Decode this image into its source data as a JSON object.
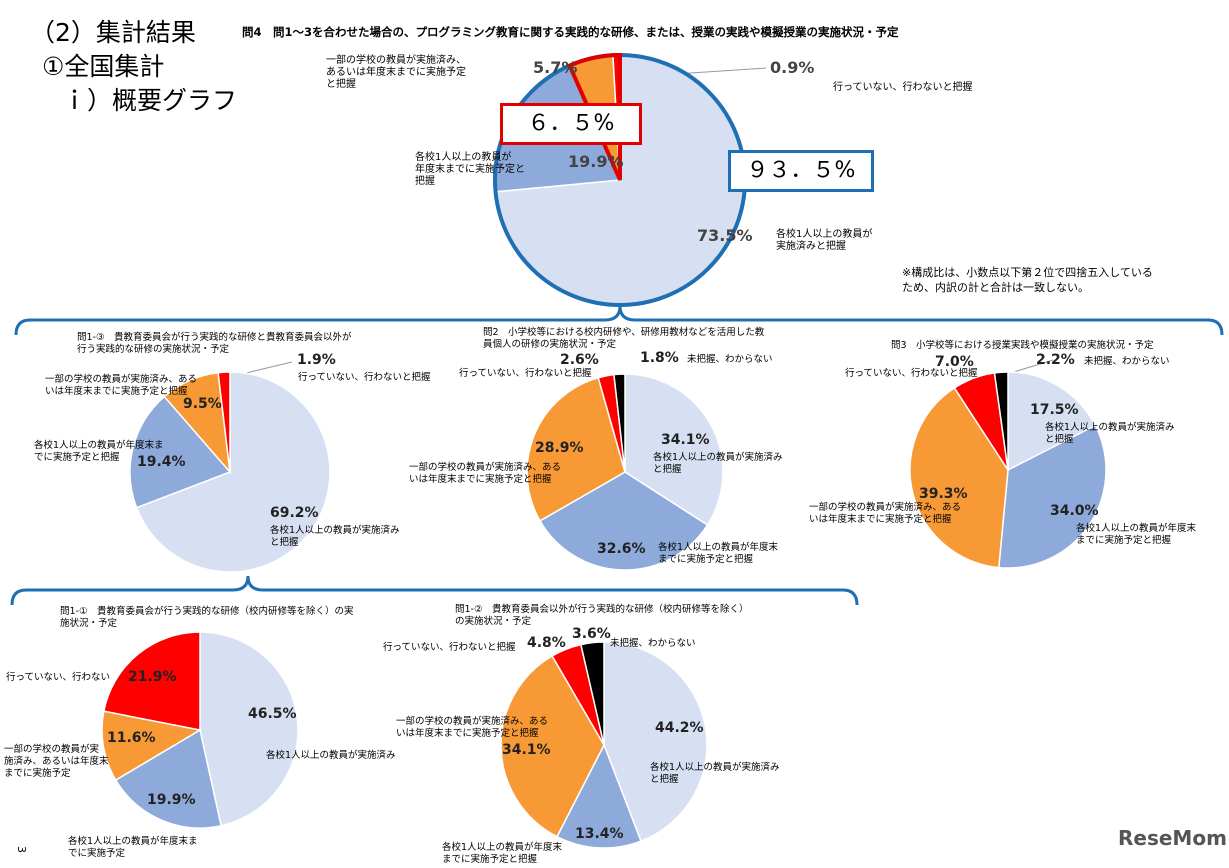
{
  "heading": {
    "line1": "（2）集計結果",
    "line2": "①全国集計",
    "line3": "ｉ）概要グラフ"
  },
  "callouts": {
    "red_box": "６．５%",
    "blue_box": "９３．５%"
  },
  "note": {
    "line1": "※構成比は、小数点以下第２位で四捨五入している",
    "line2": "ため、内訳の計と合計は一致しない。"
  },
  "page_number": "3",
  "logo": "ReseMom",
  "colors": {
    "light": "#d6e0f2",
    "medium": "#8eaadb",
    "orange": "#f79a36",
    "red": "#ff0000",
    "black": "#000000",
    "bracket": "#1f6fb4"
  },
  "chart_data": [
    {
      "type": "pie",
      "title": "問4　問1～3を合わせた場合の、プログラミング教育に関する実践的な研修、または、授業の実践や模擬授業の実施状況・予定",
      "slices": [
        {
          "label": "各校1人以上の教員が実施済みと把握",
          "label_lines": [
            "各校1人以上の教員が",
            "実施済みと把握"
          ],
          "value": 73.5,
          "pct": "73.5%",
          "color": "light"
        },
        {
          "label": "各校1人以上の教員が年度末までに実施予定と把握",
          "label_lines": [
            "各校1人以上の教員が",
            "年度末までに実施予定と",
            "把握"
          ],
          "value": 19.9,
          "pct": "19.9%",
          "color": "medium"
        },
        {
          "label": "一部の学校の教員が実施済み、あるいは年度末までに実施予定と把握",
          "label_lines": [
            "一部の学校の教員が実施済み、",
            "あるいは年度末までに実施予定",
            "と把握"
          ],
          "value": 5.7,
          "pct": "5.7%",
          "color": "orange"
        },
        {
          "label": "行っていない、行わないと把握",
          "label_lines": [
            "行っていない、行わないと把握"
          ],
          "value": 0.9,
          "pct": "0.9%",
          "color": "red"
        }
      ]
    },
    {
      "type": "pie",
      "title_lines": [
        "問1-③　貴教育委員会が行う実践的な研修と貴教育委員会以外が",
        "行う実践的な研修の実施状況・予定"
      ],
      "slices": [
        {
          "label_lines": [
            "各校1人以上の教員が実施済み",
            "と把握"
          ],
          "value": 69.2,
          "pct": "69.2%",
          "color": "light"
        },
        {
          "label_lines": [
            "各校1人以上の教員が年度末ま",
            "でに実施予定と把握"
          ],
          "value": 19.4,
          "pct": "19.4%",
          "color": "medium"
        },
        {
          "label_lines": [
            "一部の学校の教員が実施済み、ある",
            "いは年度末までに実施予定と把握"
          ],
          "value": 9.5,
          "pct": "9.5%",
          "color": "orange"
        },
        {
          "label_lines": [
            "行っていない、行わないと把握"
          ],
          "value": 1.9,
          "pct": "1.9%",
          "color": "red"
        }
      ]
    },
    {
      "type": "pie",
      "title_lines": [
        "問2　小学校等における校内研修や、研修用教材などを活用した教",
        "員個人の研修の実施状況・予定"
      ],
      "slices": [
        {
          "label_lines": [
            "各校1人以上の教員が実施済み",
            "と把握"
          ],
          "value": 34.1,
          "pct": "34.1%",
          "color": "light"
        },
        {
          "label_lines": [
            "各校1人以上の教員が年度末",
            "までに実施予定と把握"
          ],
          "value": 32.6,
          "pct": "32.6%",
          "color": "medium"
        },
        {
          "label_lines": [
            "一部の学校の教員が実施済み、ある",
            "いは年度末までに実施予定と把握"
          ],
          "value": 28.9,
          "pct": "28.9%",
          "color": "orange"
        },
        {
          "label_lines": [
            "行っていない、行わないと把握"
          ],
          "value": 2.6,
          "pct": "2.6%",
          "color": "red"
        },
        {
          "label_lines": [
            "未把握、わからない"
          ],
          "value": 1.8,
          "pct": "1.8%",
          "color": "black"
        }
      ]
    },
    {
      "type": "pie",
      "title_lines": [
        "問3　小学校等における授業実践や模擬授業の実施状況・予定"
      ],
      "slices": [
        {
          "label_lines": [
            "各校1人以上の教員が実施済み",
            "と把握"
          ],
          "value": 17.5,
          "pct": "17.5%",
          "color": "light"
        },
        {
          "label_lines": [
            "各校1人以上の教員が年度末",
            "までに実施予定と把握"
          ],
          "value": 34.0,
          "pct": "34.0%",
          "color": "medium"
        },
        {
          "label_lines": [
            "一部の学校の教員が実施済み、ある",
            "いは年度末までに実施予定と把握"
          ],
          "value": 39.3,
          "pct": "39.3%",
          "color": "orange"
        },
        {
          "label_lines": [
            "行っていない、行わないと把握"
          ],
          "value": 7.0,
          "pct": "7.0%",
          "color": "red"
        },
        {
          "label_lines": [
            "未把握、わからない"
          ],
          "value": 2.2,
          "pct": "2.2%",
          "color": "black"
        }
      ]
    },
    {
      "type": "pie",
      "title_lines": [
        "問1-①　貴教育委員会が行う実践的な研修（校内研修等を除く）の実",
        "施状況・予定"
      ],
      "slices": [
        {
          "label_lines": [
            "各校1人以上の教員が実施済み"
          ],
          "value": 46.5,
          "pct": "46.5%",
          "color": "light"
        },
        {
          "label_lines": [
            "各校1人以上の教員が年度末ま",
            "でに実施予定"
          ],
          "value": 19.9,
          "pct": "19.9%",
          "color": "medium"
        },
        {
          "label_lines": [
            "一部の学校の教員が実",
            "施済み、あるいは年度末",
            "までに実施予定"
          ],
          "value": 11.6,
          "pct": "11.6%",
          "color": "orange"
        },
        {
          "label_lines": [
            "行っていない、行わない"
          ],
          "value": 21.9,
          "pct": "21.9%",
          "color": "red"
        }
      ]
    },
    {
      "type": "pie",
      "title_lines": [
        "問1-②　貴教育委員会以外が行う実践的な研修（校内研修等を除く）",
        "の実施状況・予定"
      ],
      "slices": [
        {
          "label_lines": [
            "各校1人以上の教員が実施済み",
            "と把握"
          ],
          "value": 44.2,
          "pct": "44.2%",
          "color": "light"
        },
        {
          "label_lines": [
            "各校1人以上の教員が年度末",
            "までに実施予定と把握"
          ],
          "value": 13.4,
          "pct": "13.4%",
          "color": "medium"
        },
        {
          "label_lines": [
            "一部の学校の教員が実施済み、ある",
            "いは年度末までに実施予定と把握"
          ],
          "value": 34.1,
          "pct": "34.1%",
          "color": "orange"
        },
        {
          "label_lines": [
            "行っていない、行わないと把握"
          ],
          "value": 4.8,
          "pct": "4.8%",
          "color": "red"
        },
        {
          "label_lines": [
            "未把握、わからない"
          ],
          "value": 3.6,
          "pct": "3.6%",
          "color": "black"
        }
      ]
    }
  ]
}
